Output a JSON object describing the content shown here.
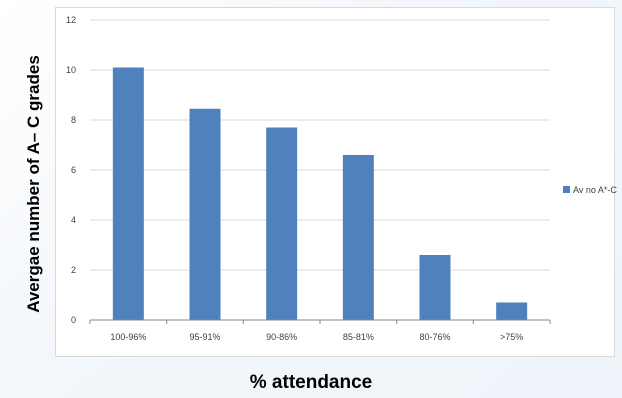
{
  "chart_data": {
    "type": "bar",
    "title": "",
    "xlabel": "% attendance",
    "ylabel": "Avergae number of A– C grades",
    "categories": [
      "100-96%",
      "95-91%",
      "90-86%",
      "85-81%",
      "80-76%",
      ">75%"
    ],
    "series": [
      {
        "name": "Av no A*-C",
        "values": [
          10.1,
          8.45,
          7.7,
          6.6,
          2.6,
          0.7
        ]
      }
    ],
    "ylim": [
      0,
      12
    ],
    "yticks": [
      "0",
      "2",
      "4",
      "6",
      "8",
      "10",
      "12"
    ],
    "grid": true,
    "legend": "right",
    "colors": {
      "bar": "#4f81bd",
      "grid": "#d9d9d9",
      "axis": "#868686"
    }
  }
}
